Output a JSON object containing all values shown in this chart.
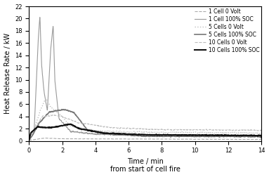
{
  "xlabel": "Time / min",
  "xlabel2": "from start of cell fire",
  "ylabel": "Heat Release Rate / kW",
  "xlim": [
    0,
    14
  ],
  "ylim": [
    0,
    22
  ],
  "yticks": [
    0,
    2,
    4,
    6,
    8,
    10,
    12,
    14,
    16,
    18,
    20,
    22
  ],
  "xticks": [
    0,
    2,
    4,
    6,
    8,
    10,
    12,
    14
  ],
  "legend_entries": [
    "1 Cell 0 Volt",
    "1 Cell 100% SOC",
    "5 Cells 0 Volt",
    "5 Cells 100% SOC",
    "10 Cells 0 Volt",
    "10 Cells 100% SOC"
  ],
  "series_colors": [
    "#aaaaaa",
    "#999999",
    "#c0c0c0",
    "#777777",
    "#bbbbbb",
    "#111111"
  ],
  "series_linestyles": [
    "--",
    "-",
    ":",
    "-",
    "--",
    "-"
  ],
  "series_linewidths": [
    0.8,
    0.8,
    1.0,
    1.2,
    0.8,
    1.5
  ],
  "legend_fontsize": 5.5,
  "axis_fontsize": 7,
  "tick_fontsize": 6
}
